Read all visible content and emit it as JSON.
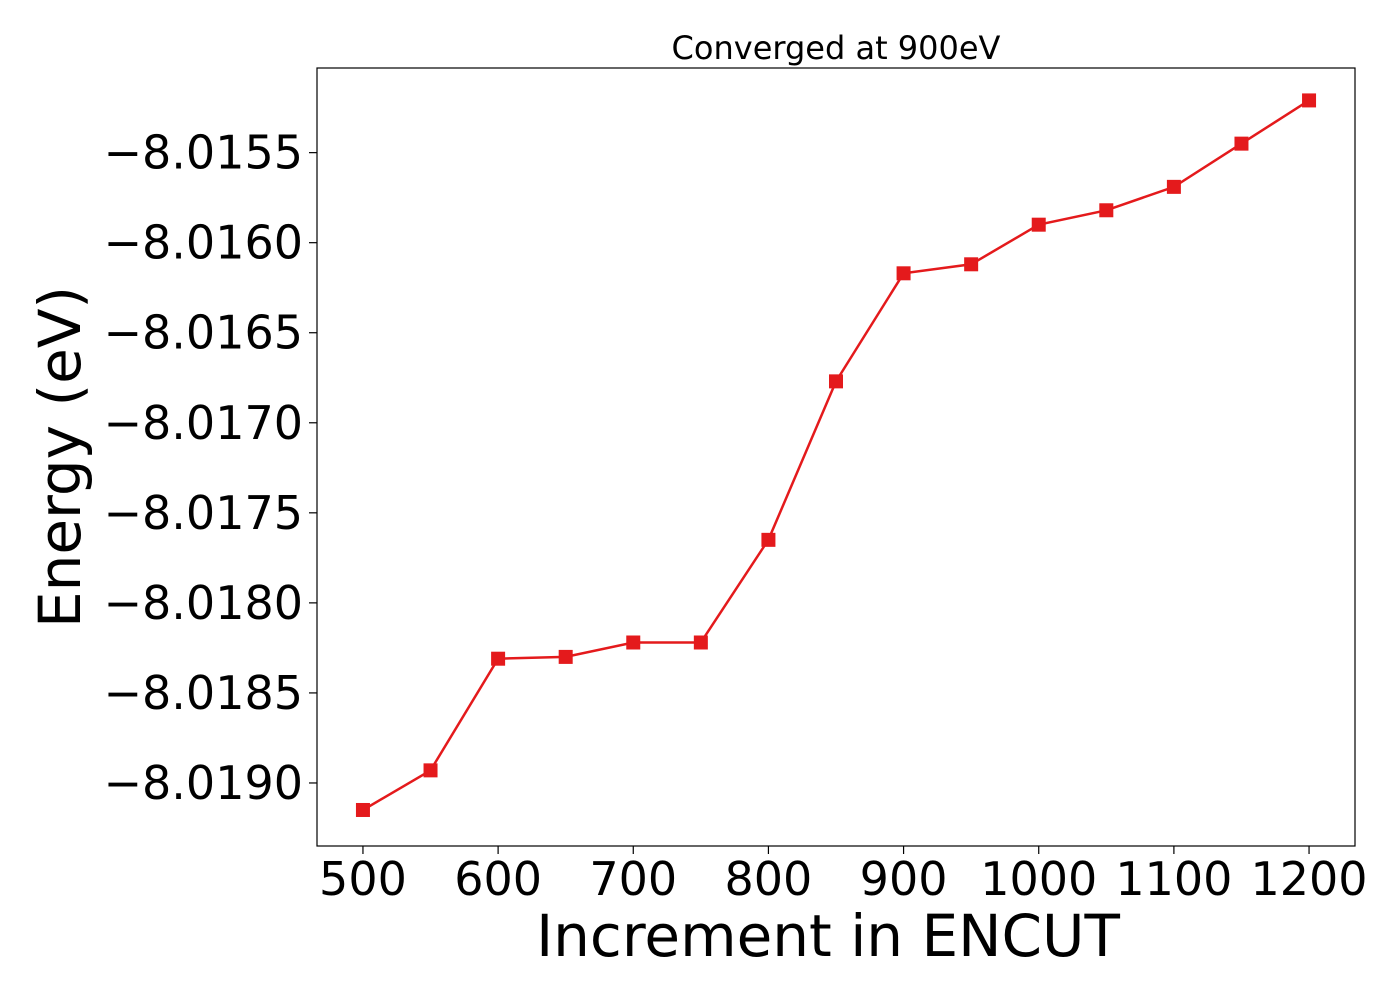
{
  "chart_data": {
    "type": "line",
    "title": "Converged at 900eV",
    "xlabel": "Increment in ENCUT",
    "ylabel": "Energy (eV)",
    "x": [
      500,
      550,
      600,
      650,
      700,
      750,
      800,
      850,
      900,
      950,
      1000,
      1050,
      1100,
      1150,
      1200
    ],
    "series": [
      {
        "values": [
          -8.01915,
          -8.01893,
          -8.01831,
          -8.0183,
          -8.01822,
          -8.01822,
          -8.01765,
          -8.01677,
          -8.01617,
          -8.01612,
          -8.0159,
          -8.01582,
          -8.01569,
          -8.01545,
          -8.01521
        ],
        "color": "#e41a1c",
        "marker": "square"
      }
    ],
    "xlim": [
      466,
      1234
    ],
    "ylim": [
      -8.01935,
      -8.01503
    ],
    "xticks": [
      "500",
      "600",
      "700",
      "800",
      "900",
      "1000",
      "1100",
      "1200"
    ],
    "yticks": [
      "−8.0155",
      "−8.0160",
      "−8.0165",
      "−8.0170",
      "−8.0175",
      "−8.0180",
      "−8.0185",
      "−8.0190"
    ],
    "grid": false
  }
}
